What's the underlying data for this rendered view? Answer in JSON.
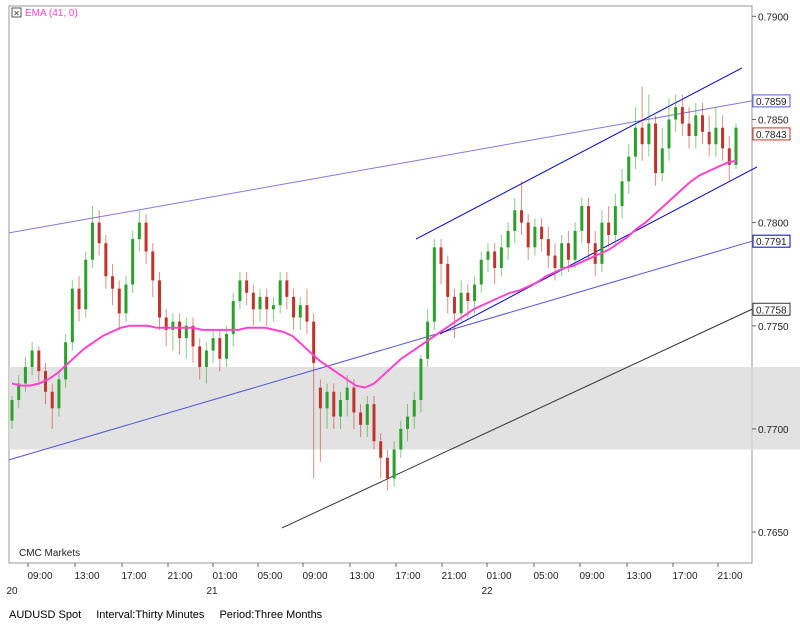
{
  "legend": {
    "close_glyph": "✕",
    "label": "EMA (41, 0)"
  },
  "watermark": "CMC Markets",
  "footer": {
    "symbol": "AUDUSD Spot",
    "interval": "Interval:Thirty Minutes",
    "period": "Period:Three Months"
  },
  "colors": {
    "up": "#2ca02c",
    "down": "#c0342c",
    "ema": "#ff44cc",
    "channel": "#0000cc",
    "trend_purple": "#8877dd",
    "trend_blue": "#5555dd",
    "trend_black": "#333333",
    "band": "#dddddd"
  },
  "chart_data": {
    "type": "candlestick",
    "y_range": [
      0.7635,
      0.7905
    ],
    "y_ticks": [
      "0.7650",
      "0.7700",
      "0.7750",
      "0.7800",
      "0.7850",
      "0.7900"
    ],
    "price_tags": [
      {
        "label": "0.7859",
        "color": "#5555dd"
      },
      {
        "label": "0.7843",
        "color": "#c0342c"
      },
      {
        "label": "0.7791",
        "color": "#0000cc"
      },
      {
        "label": "0.7758",
        "color": "#333333"
      }
    ],
    "x_time_labels": [
      "09:00",
      "13:00",
      "17:00",
      "21:00",
      "01:00",
      "05:00",
      "09:00",
      "13:00",
      "17:00",
      "21:00",
      "01:00",
      "05:00",
      "09:00",
      "13:00",
      "17:00",
      "21:00"
    ],
    "x_date_labels": [
      "20",
      "21",
      "22"
    ],
    "candles": [
      [
        0.7704,
        0.7714,
        0.77,
        0.7716
      ],
      [
        0.7714,
        0.7722,
        0.771,
        0.7726
      ],
      [
        0.7722,
        0.773,
        0.7718,
        0.7735
      ],
      [
        0.773,
        0.7738,
        0.7726,
        0.7742
      ],
      [
        0.7738,
        0.7728,
        0.7722,
        0.774
      ],
      [
        0.7728,
        0.7718,
        0.7712,
        0.7732
      ],
      [
        0.7718,
        0.771,
        0.77,
        0.7722
      ],
      [
        0.771,
        0.7724,
        0.7706,
        0.7728
      ],
      [
        0.7724,
        0.7742,
        0.772,
        0.7746
      ],
      [
        0.7742,
        0.7768,
        0.7738,
        0.7772
      ],
      [
        0.7768,
        0.7758,
        0.7752,
        0.7774
      ],
      [
        0.7758,
        0.7782,
        0.7754,
        0.7786
      ],
      [
        0.7782,
        0.78,
        0.7778,
        0.7808
      ],
      [
        0.78,
        0.779,
        0.7784,
        0.7806
      ],
      [
        0.779,
        0.7774,
        0.7768,
        0.7794
      ],
      [
        0.7774,
        0.7768,
        0.776,
        0.778
      ],
      [
        0.7768,
        0.7756,
        0.7748,
        0.7772
      ],
      [
        0.7756,
        0.777,
        0.7752,
        0.7774
      ],
      [
        0.777,
        0.7792,
        0.7766,
        0.7796
      ],
      [
        0.7792,
        0.78,
        0.7786,
        0.7806
      ],
      [
        0.78,
        0.7786,
        0.778,
        0.7804
      ],
      [
        0.7786,
        0.7772,
        0.7764,
        0.779
      ],
      [
        0.7772,
        0.7754,
        0.7748,
        0.7776
      ],
      [
        0.7754,
        0.7748,
        0.774,
        0.7758
      ],
      [
        0.7748,
        0.7752,
        0.7738,
        0.7756
      ],
      [
        0.7752,
        0.7744,
        0.7736,
        0.7756
      ],
      [
        0.7744,
        0.775,
        0.7734,
        0.7754
      ],
      [
        0.775,
        0.774,
        0.7732,
        0.7754
      ],
      [
        0.774,
        0.773,
        0.7724,
        0.7744
      ],
      [
        0.773,
        0.7738,
        0.7722,
        0.7742
      ],
      [
        0.7738,
        0.7744,
        0.7732,
        0.7748
      ],
      [
        0.7744,
        0.7734,
        0.7728,
        0.7748
      ],
      [
        0.7734,
        0.7746,
        0.773,
        0.775
      ],
      [
        0.7746,
        0.7762,
        0.774,
        0.7766
      ],
      [
        0.7762,
        0.7772,
        0.7758,
        0.7776
      ],
      [
        0.7772,
        0.7766,
        0.776,
        0.7776
      ],
      [
        0.7766,
        0.7758,
        0.775,
        0.777
      ],
      [
        0.7758,
        0.7764,
        0.7752,
        0.7768
      ],
      [
        0.7764,
        0.7758,
        0.775,
        0.7768
      ],
      [
        0.7758,
        0.776,
        0.7752,
        0.7764
      ],
      [
        0.776,
        0.7772,
        0.7756,
        0.7776
      ],
      [
        0.7772,
        0.7764,
        0.7758,
        0.7776
      ],
      [
        0.7764,
        0.7754,
        0.7748,
        0.7768
      ],
      [
        0.7754,
        0.776,
        0.7748,
        0.7764
      ],
      [
        0.776,
        0.7752,
        0.7746,
        0.7768
      ],
      [
        0.7752,
        0.7732,
        0.7676,
        0.7756
      ],
      [
        0.772,
        0.771,
        0.7684,
        0.7724
      ],
      [
        0.771,
        0.7718,
        0.77,
        0.7722
      ],
      [
        0.7718,
        0.7706,
        0.77,
        0.7722
      ],
      [
        0.7706,
        0.7714,
        0.77,
        0.7718
      ],
      [
        0.7714,
        0.772,
        0.7706,
        0.7726
      ],
      [
        0.772,
        0.7708,
        0.77,
        0.7724
      ],
      [
        0.7708,
        0.7702,
        0.7696,
        0.7712
      ],
      [
        0.7702,
        0.7712,
        0.7696,
        0.7716
      ],
      [
        0.7712,
        0.7694,
        0.769,
        0.7716
      ],
      [
        0.7694,
        0.7686,
        0.7676,
        0.7698
      ],
      [
        0.7686,
        0.7676,
        0.767,
        0.769
      ],
      [
        0.7676,
        0.769,
        0.7672,
        0.7694
      ],
      [
        0.769,
        0.77,
        0.7686,
        0.7704
      ],
      [
        0.77,
        0.7706,
        0.7694,
        0.7712
      ],
      [
        0.7706,
        0.7714,
        0.77,
        0.7718
      ],
      [
        0.7714,
        0.7734,
        0.7708,
        0.7736
      ],
      [
        0.7734,
        0.7752,
        0.773,
        0.7758
      ],
      [
        0.7752,
        0.7788,
        0.7748,
        0.7792
      ],
      [
        0.7788,
        0.778,
        0.777,
        0.7792
      ],
      [
        0.778,
        0.7764,
        0.7756,
        0.7784
      ],
      [
        0.7764,
        0.7756,
        0.7744,
        0.7768
      ],
      [
        0.7756,
        0.7766,
        0.7752,
        0.7772
      ],
      [
        0.7766,
        0.7762,
        0.7754,
        0.777
      ],
      [
        0.7762,
        0.777,
        0.7756,
        0.7774
      ],
      [
        0.777,
        0.7782,
        0.7766,
        0.7786
      ],
      [
        0.7782,
        0.7786,
        0.7776,
        0.779
      ],
      [
        0.7786,
        0.7778,
        0.777,
        0.779
      ],
      [
        0.7778,
        0.7788,
        0.7774,
        0.7794
      ],
      [
        0.7788,
        0.7796,
        0.7782,
        0.78
      ],
      [
        0.7796,
        0.7806,
        0.779,
        0.7812
      ],
      [
        0.7806,
        0.78,
        0.7794,
        0.782
      ],
      [
        0.78,
        0.7788,
        0.7782,
        0.7804
      ],
      [
        0.7788,
        0.7798,
        0.7784,
        0.7802
      ],
      [
        0.7798,
        0.7792,
        0.7786,
        0.7802
      ],
      [
        0.7792,
        0.7784,
        0.7778,
        0.7798
      ],
      [
        0.7784,
        0.7778,
        0.7772,
        0.779
      ],
      [
        0.7778,
        0.779,
        0.7774,
        0.7794
      ],
      [
        0.779,
        0.7782,
        0.7776,
        0.7796
      ],
      [
        0.7782,
        0.7796,
        0.7778,
        0.78
      ],
      [
        0.7796,
        0.7808,
        0.779,
        0.7812
      ],
      [
        0.7808,
        0.779,
        0.7782,
        0.7812
      ],
      [
        0.779,
        0.778,
        0.7774,
        0.7796
      ],
      [
        0.778,
        0.78,
        0.7776,
        0.7806
      ],
      [
        0.78,
        0.7794,
        0.7788,
        0.7808
      ],
      [
        0.7794,
        0.7808,
        0.7788,
        0.7814
      ],
      [
        0.7808,
        0.782,
        0.7802,
        0.7826
      ],
      [
        0.782,
        0.7832,
        0.7814,
        0.7838
      ],
      [
        0.7832,
        0.7846,
        0.7826,
        0.7856
      ],
      [
        0.7846,
        0.7838,
        0.783,
        0.7866
      ],
      [
        0.7838,
        0.7848,
        0.7832,
        0.7862
      ],
      [
        0.7848,
        0.7824,
        0.7818,
        0.7852
      ],
      [
        0.7824,
        0.7836,
        0.782,
        0.7846
      ],
      [
        0.7836,
        0.785,
        0.783,
        0.786
      ],
      [
        0.785,
        0.7856,
        0.7844,
        0.7862
      ],
      [
        0.7856,
        0.7848,
        0.7842,
        0.7862
      ],
      [
        0.7848,
        0.7842,
        0.7836,
        0.7856
      ],
      [
        0.7842,
        0.7852,
        0.7836,
        0.7858
      ],
      [
        0.7852,
        0.7844,
        0.7838,
        0.7858
      ],
      [
        0.7844,
        0.7838,
        0.7832,
        0.7852
      ],
      [
        0.7838,
        0.7846,
        0.7832,
        0.7856
      ],
      [
        0.7846,
        0.7836,
        0.783,
        0.7852
      ],
      [
        0.7836,
        0.7828,
        0.782,
        0.7842
      ],
      [
        0.7828,
        0.7846,
        0.7826,
        0.7848
      ]
    ],
    "ema": [
      0.7722,
      0.7721,
      0.7721,
      0.7722,
      0.7724,
      0.7727,
      0.7731,
      0.7735,
      0.7739,
      0.7742,
      0.7745,
      0.7747,
      0.7749,
      0.775,
      0.775,
      0.775,
      0.7749,
      0.7749,
      0.7749,
      0.7749,
      0.7749,
      0.7748,
      0.7748,
      0.7748,
      0.7748,
      0.7748,
      0.7749,
      0.7749,
      0.7749,
      0.7748,
      0.7747,
      0.7745,
      0.7741,
      0.7737,
      0.7733,
      0.773,
      0.7727,
      0.7724,
      0.7721,
      0.772,
      0.7722,
      0.7726,
      0.773,
      0.7734,
      0.7737,
      0.774,
      0.7743,
      0.7746,
      0.7749,
      0.7752,
      0.7755,
      0.7758,
      0.776,
      0.7762,
      0.7764,
      0.7766,
      0.7767,
      0.7769,
      0.7771,
      0.7774,
      0.7776,
      0.7778,
      0.7779,
      0.7781,
      0.7783,
      0.7785,
      0.7787,
      0.779,
      0.7793,
      0.7797,
      0.78,
      0.7804,
      0.7808,
      0.7812,
      0.7816,
      0.782,
      0.7823,
      0.7825,
      0.7827,
      0.7829,
      0.783
    ]
  }
}
